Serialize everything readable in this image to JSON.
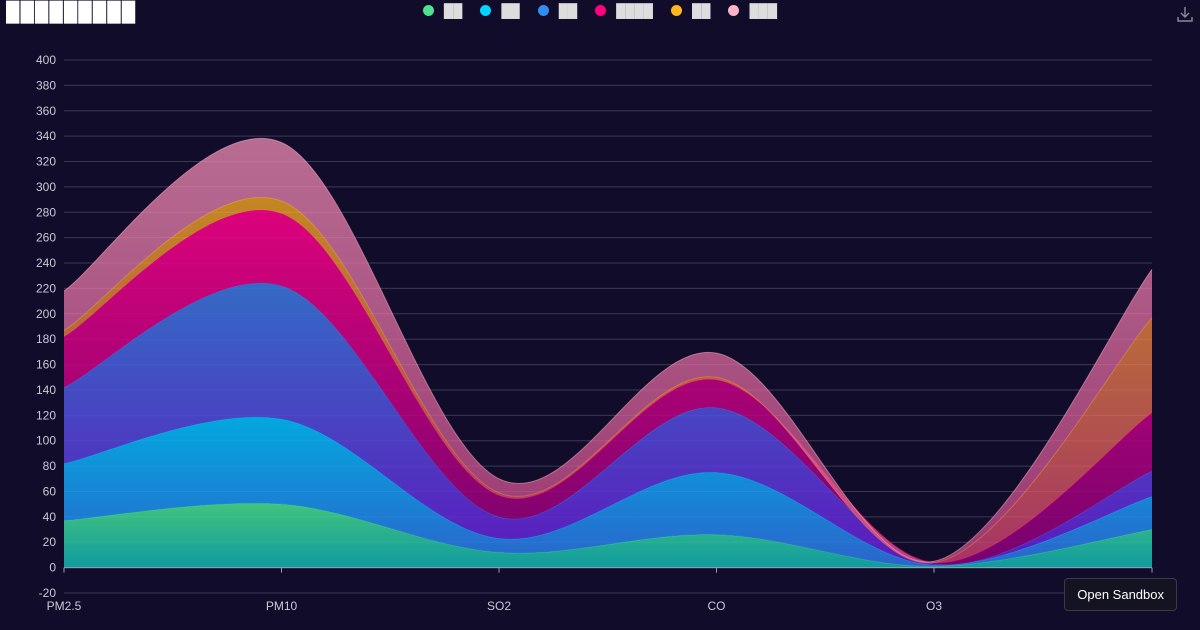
{
  "title": "█████████",
  "toolbar": {
    "sandbox_label": "Open Sandbox",
    "download_icon": "download-icon"
  },
  "chart_data": {
    "type": "area",
    "stacked": true,
    "smooth": true,
    "categories": [
      "PM2.5",
      "PM10",
      "SO2",
      "CO",
      "O3",
      ""
    ],
    "ylim": [
      -20,
      400
    ],
    "yticks": [
      -20,
      0,
      20,
      40,
      60,
      80,
      100,
      120,
      140,
      160,
      180,
      200,
      220,
      240,
      260,
      280,
      300,
      320,
      340,
      360,
      380,
      400
    ],
    "grid": true,
    "legend_position": "top-center",
    "series": [
      {
        "name": "██",
        "color": "#4be38c",
        "values": [
          37,
          50,
          12,
          26,
          1,
          30
        ]
      },
      {
        "name": "██",
        "color": "#00d4ff",
        "values": [
          45,
          67,
          11,
          49,
          1,
          26
        ]
      },
      {
        "name": "██",
        "color": "#2f8cf0",
        "values": [
          60,
          105,
          17,
          51,
          1,
          20
        ]
      },
      {
        "name": "████",
        "color": "#ff007f",
        "values": [
          40,
          57,
          17,
          22,
          1,
          46
        ]
      },
      {
        "name": "██",
        "color": "#ffb81c",
        "values": [
          5,
          10,
          2,
          2,
          0,
          75
        ]
      },
      {
        "name": "███",
        "color": "#ffb3c6",
        "values": [
          31,
          46,
          11,
          19,
          1,
          38
        ]
      }
    ]
  }
}
